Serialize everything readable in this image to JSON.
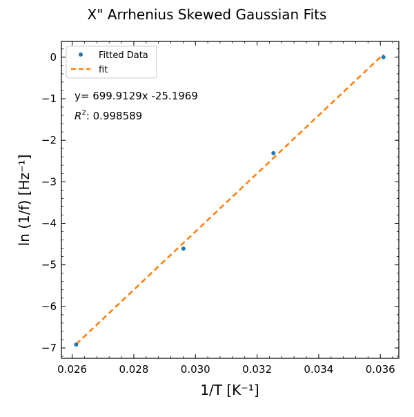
{
  "chart_data": {
    "type": "scatter",
    "title": "X\" Arrhenius Skewed Gaussian Fits",
    "xlabel": "1/T [K⁻¹]",
    "ylabel": "ln (1/f) [Hz⁻¹]",
    "xlim": [
      0.02565,
      0.0366
    ],
    "ylim": [
      -7.25,
      0.38
    ],
    "xticks": [
      0.026,
      0.028,
      0.03,
      0.032,
      0.034,
      0.036
    ],
    "xtick_labels": [
      "0.026",
      "0.028",
      "0.030",
      "0.032",
      "0.034",
      "0.036"
    ],
    "yticks": [
      0,
      -1,
      -2,
      -3,
      -4,
      -5,
      -6,
      -7
    ],
    "ytick_labels": [
      "0",
      "−1",
      "−2",
      "−3",
      "−4",
      "−5",
      "−6",
      "−7"
    ],
    "grid": false,
    "legend_position": "top-left",
    "series": [
      {
        "name": "Fitted Data",
        "kind": "points",
        "color": "#1f77b4",
        "x": [
          0.02613,
          0.02961,
          0.03253,
          0.0361
        ],
        "y": [
          -6.92,
          -4.61,
          -2.31,
          0.0
        ]
      },
      {
        "name": "fit",
        "kind": "dashed-line",
        "color": "#ff7f0e",
        "x": [
          0.02613,
          0.0361
        ],
        "y": [
          -6.908,
          0.071
        ]
      }
    ],
    "annotations": {
      "equation": "y= 699.9129x -25.1969",
      "r2_symbol": "R",
      "r2_exponent": "2",
      "r2_value": ": 0.998589"
    }
  }
}
